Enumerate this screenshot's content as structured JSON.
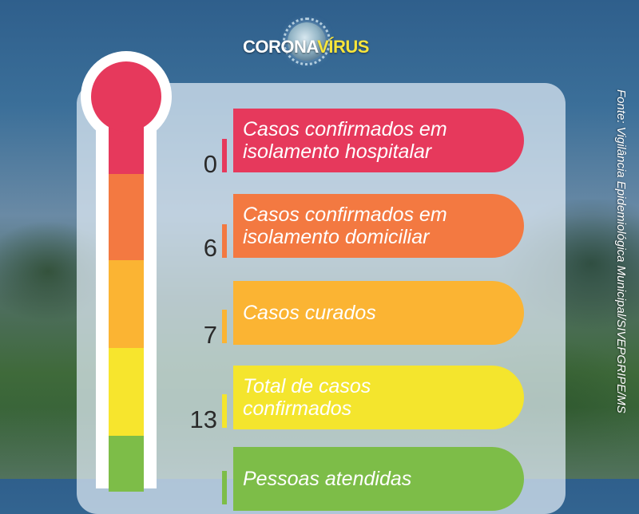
{
  "header": {
    "logo_text_1": "CORONA",
    "logo_text_2": "VÍRUS",
    "logo_icon": "virus-icon"
  },
  "source": "Fonte: Vigilância Epidemiológica Municipal/SIVEPGRIPE/MS",
  "colors": {
    "red": "#e6395c",
    "orange": "#f37941",
    "amber": "#fbb433",
    "yellow": "#f4e52d",
    "green": "#7dbd48"
  },
  "rows": [
    {
      "value": "0",
      "label": "Casos confirmados em\nisolamento hospitalar"
    },
    {
      "value": "6",
      "label": "Casos confirmados em\nisolamento domiciliar"
    },
    {
      "value": "7",
      "label": "Casos curados"
    },
    {
      "value": "13",
      "label": "Total de casos\n confirmados"
    },
    {
      "value": "",
      "label": "Pessoas atendidas"
    }
  ]
}
